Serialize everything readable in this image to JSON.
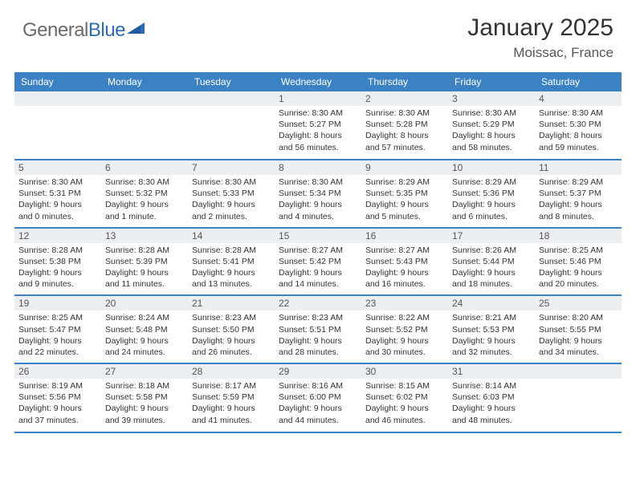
{
  "brand": {
    "part1": "General",
    "part2": "Blue"
  },
  "title": "January 2025",
  "location": "Moissac, France",
  "header_bg": "#3b82c4",
  "dayHeaders": [
    "Sunday",
    "Monday",
    "Tuesday",
    "Wednesday",
    "Thursday",
    "Friday",
    "Saturday"
  ],
  "weeks": [
    [
      null,
      null,
      null,
      {
        "n": "1",
        "sr": "8:30 AM",
        "ss": "5:27 PM",
        "dl": "8 hours and 56 minutes."
      },
      {
        "n": "2",
        "sr": "8:30 AM",
        "ss": "5:28 PM",
        "dl": "8 hours and 57 minutes."
      },
      {
        "n": "3",
        "sr": "8:30 AM",
        "ss": "5:29 PM",
        "dl": "8 hours and 58 minutes."
      },
      {
        "n": "4",
        "sr": "8:30 AM",
        "ss": "5:30 PM",
        "dl": "8 hours and 59 minutes."
      }
    ],
    [
      {
        "n": "5",
        "sr": "8:30 AM",
        "ss": "5:31 PM",
        "dl": "9 hours and 0 minutes."
      },
      {
        "n": "6",
        "sr": "8:30 AM",
        "ss": "5:32 PM",
        "dl": "9 hours and 1 minute."
      },
      {
        "n": "7",
        "sr": "8:30 AM",
        "ss": "5:33 PM",
        "dl": "9 hours and 2 minutes."
      },
      {
        "n": "8",
        "sr": "8:30 AM",
        "ss": "5:34 PM",
        "dl": "9 hours and 4 minutes."
      },
      {
        "n": "9",
        "sr": "8:29 AM",
        "ss": "5:35 PM",
        "dl": "9 hours and 5 minutes."
      },
      {
        "n": "10",
        "sr": "8:29 AM",
        "ss": "5:36 PM",
        "dl": "9 hours and 6 minutes."
      },
      {
        "n": "11",
        "sr": "8:29 AM",
        "ss": "5:37 PM",
        "dl": "9 hours and 8 minutes."
      }
    ],
    [
      {
        "n": "12",
        "sr": "8:28 AM",
        "ss": "5:38 PM",
        "dl": "9 hours and 9 minutes."
      },
      {
        "n": "13",
        "sr": "8:28 AM",
        "ss": "5:39 PM",
        "dl": "9 hours and 11 minutes."
      },
      {
        "n": "14",
        "sr": "8:28 AM",
        "ss": "5:41 PM",
        "dl": "9 hours and 13 minutes."
      },
      {
        "n": "15",
        "sr": "8:27 AM",
        "ss": "5:42 PM",
        "dl": "9 hours and 14 minutes."
      },
      {
        "n": "16",
        "sr": "8:27 AM",
        "ss": "5:43 PM",
        "dl": "9 hours and 16 minutes."
      },
      {
        "n": "17",
        "sr": "8:26 AM",
        "ss": "5:44 PM",
        "dl": "9 hours and 18 minutes."
      },
      {
        "n": "18",
        "sr": "8:25 AM",
        "ss": "5:46 PM",
        "dl": "9 hours and 20 minutes."
      }
    ],
    [
      {
        "n": "19",
        "sr": "8:25 AM",
        "ss": "5:47 PM",
        "dl": "9 hours and 22 minutes."
      },
      {
        "n": "20",
        "sr": "8:24 AM",
        "ss": "5:48 PM",
        "dl": "9 hours and 24 minutes."
      },
      {
        "n": "21",
        "sr": "8:23 AM",
        "ss": "5:50 PM",
        "dl": "9 hours and 26 minutes."
      },
      {
        "n": "22",
        "sr": "8:23 AM",
        "ss": "5:51 PM",
        "dl": "9 hours and 28 minutes."
      },
      {
        "n": "23",
        "sr": "8:22 AM",
        "ss": "5:52 PM",
        "dl": "9 hours and 30 minutes."
      },
      {
        "n": "24",
        "sr": "8:21 AM",
        "ss": "5:53 PM",
        "dl": "9 hours and 32 minutes."
      },
      {
        "n": "25",
        "sr": "8:20 AM",
        "ss": "5:55 PM",
        "dl": "9 hours and 34 minutes."
      }
    ],
    [
      {
        "n": "26",
        "sr": "8:19 AM",
        "ss": "5:56 PM",
        "dl": "9 hours and 37 minutes."
      },
      {
        "n": "27",
        "sr": "8:18 AM",
        "ss": "5:58 PM",
        "dl": "9 hours and 39 minutes."
      },
      {
        "n": "28",
        "sr": "8:17 AM",
        "ss": "5:59 PM",
        "dl": "9 hours and 41 minutes."
      },
      {
        "n": "29",
        "sr": "8:16 AM",
        "ss": "6:00 PM",
        "dl": "9 hours and 44 minutes."
      },
      {
        "n": "30",
        "sr": "8:15 AM",
        "ss": "6:02 PM",
        "dl": "9 hours and 46 minutes."
      },
      {
        "n": "31",
        "sr": "8:14 AM",
        "ss": "6:03 PM",
        "dl": "9 hours and 48 minutes."
      },
      null
    ]
  ],
  "labels": {
    "sunrise": "Sunrise: ",
    "sunset": "Sunset: ",
    "daylight": "Daylight: "
  }
}
